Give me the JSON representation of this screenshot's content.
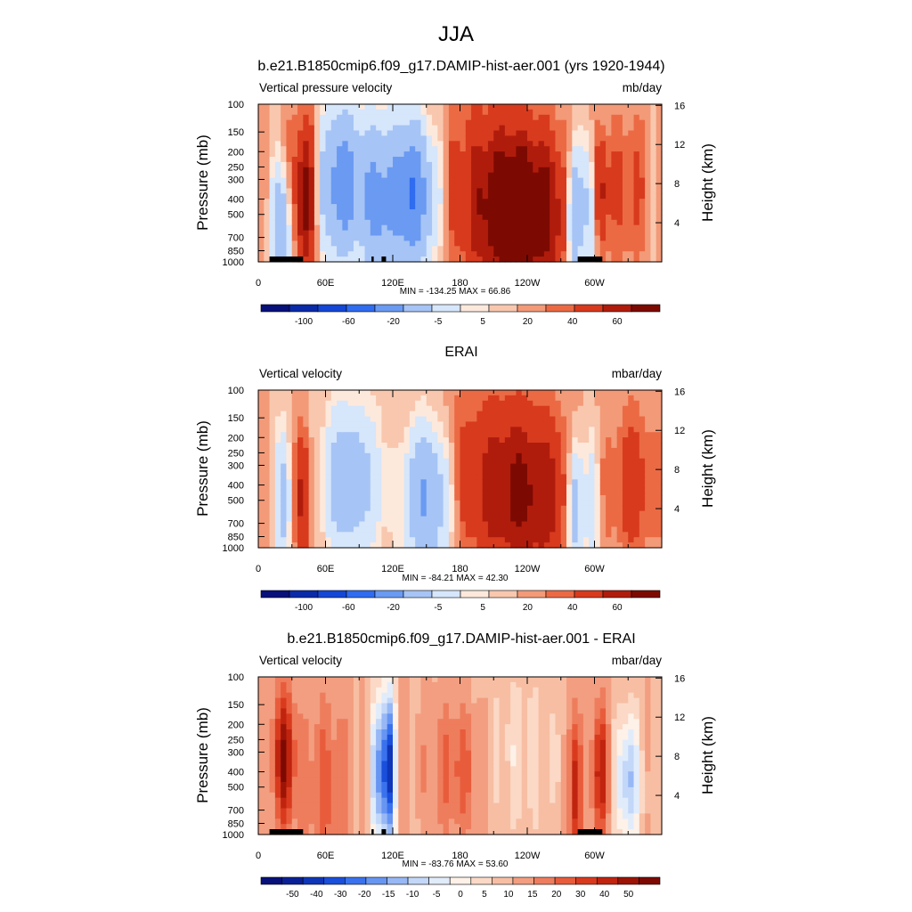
{
  "figure_title": "JJA",
  "colors": {
    "palette_13": [
      "#08107a",
      "#0a2aa8",
      "#1447d6",
      "#2f6cf0",
      "#6a9af2",
      "#a6c4f5",
      "#d6e6fb",
      "#fde9dc",
      "#f8c7ae",
      "#f39a78",
      "#eb6a44",
      "#d83a1e",
      "#b01c0c",
      "#7d0a02"
    ],
    "palette_20": [
      "#08107a",
      "#0a2096",
      "#0f36b8",
      "#1a4fdc",
      "#3a72ee",
      "#6795f2",
      "#97b8f5",
      "#c3d7f8",
      "#e1ecfb",
      "#fdf1e8",
      "#fbd9c6",
      "#f7bea3",
      "#f39e80",
      "#ee7d5d",
      "#e85c3c",
      "#d93a1e",
      "#c0240f",
      "#9c1406",
      "#7d0a02"
    ],
    "land": "#000000"
  },
  "chart_data": [
    {
      "type": "heatmap",
      "title": "b.e21.B1850cmip6.f09_g17.DAMIP-hist-aer.001 (yrs 1920-1944)",
      "left_label": "Vertical pressure velocity",
      "units": "mb/day",
      "ylabel": "Pressure (mb)",
      "ylabel_right": "Height (km)",
      "x_ticks": [
        "0",
        "60E",
        "120E",
        "180",
        "120W",
        "60W"
      ],
      "y_ticks": [
        "100",
        "150",
        "200",
        "250",
        "300",
        "400",
        "500",
        "700",
        "850",
        "1000"
      ],
      "height_ticks": [
        "16",
        "12",
        "8",
        "4"
      ],
      "stats": "MIN = -134.25  MAX =  66.86",
      "colorbar_labels": [
        "-100",
        "-60",
        "-20",
        "-5",
        "5",
        "20",
        "40",
        "60"
      ],
      "levels": [
        -120,
        -100,
        -80,
        -60,
        -40,
        -20,
        -10,
        -5,
        0,
        5,
        10,
        20,
        30,
        40,
        50,
        60
      ],
      "ylim": [
        1000,
        100
      ],
      "land_blocks": [
        [
          10,
          40
        ],
        [
          101,
          103
        ],
        [
          110,
          114
        ],
        [
          285,
          307
        ]
      ]
    },
    {
      "type": "heatmap",
      "title": "ERAI",
      "left_label": "Vertical velocity",
      "units": "mbar/day",
      "ylabel": "Pressure (mb)",
      "ylabel_right": "Height (km)",
      "x_ticks": [
        "0",
        "60E",
        "120E",
        "180",
        "120W",
        "60W"
      ],
      "y_ticks": [
        "100",
        "150",
        "200",
        "250",
        "300",
        "400",
        "500",
        "700",
        "850",
        "1000"
      ],
      "height_ticks": [
        "16",
        "12",
        "8",
        "4"
      ],
      "stats": "MIN = -84.21  MAX =  42.30",
      "colorbar_labels": [
        "-100",
        "-60",
        "-20",
        "-5",
        "5",
        "20",
        "40",
        "60"
      ],
      "levels": [
        -120,
        -100,
        -80,
        -60,
        -40,
        -20,
        -10,
        -5,
        0,
        5,
        10,
        20,
        30,
        40,
        50,
        60
      ],
      "ylim": [
        1000,
        100
      ],
      "land_blocks": []
    },
    {
      "type": "heatmap",
      "title": "b.e21.B1850cmip6.f09_g17.DAMIP-hist-aer.001 - ERAI",
      "left_label": "Vertical velocity",
      "units": "mbar/day",
      "ylabel": "Pressure (mb)",
      "ylabel_right": "Height (km)",
      "x_ticks": [
        "0",
        "60E",
        "120E",
        "180",
        "120W",
        "60W"
      ],
      "y_ticks": [
        "100",
        "150",
        "200",
        "250",
        "300",
        "400",
        "500",
        "700",
        "850",
        "1000"
      ],
      "height_ticks": [
        "16",
        "12",
        "8",
        "4"
      ],
      "stats": "MIN = -83.76  MAX =  53.60",
      "colorbar_labels": [
        "-50",
        "-40",
        "-30",
        "-20",
        "-15",
        "-10",
        "-5",
        "0",
        "5",
        "10",
        "15",
        "20",
        "30",
        "40",
        "50"
      ],
      "levels": [
        -55,
        -50,
        -45,
        -40,
        -35,
        -30,
        -25,
        -20,
        -15,
        -10,
        -5,
        0,
        5,
        10,
        15,
        20,
        25,
        30,
        35,
        40,
        45,
        50,
        55
      ],
      "ylim": [
        1000,
        100
      ],
      "land_blocks": [
        [
          10,
          40
        ],
        [
          101,
          103
        ],
        [
          110,
          114
        ],
        [
          285,
          307
        ]
      ]
    }
  ]
}
